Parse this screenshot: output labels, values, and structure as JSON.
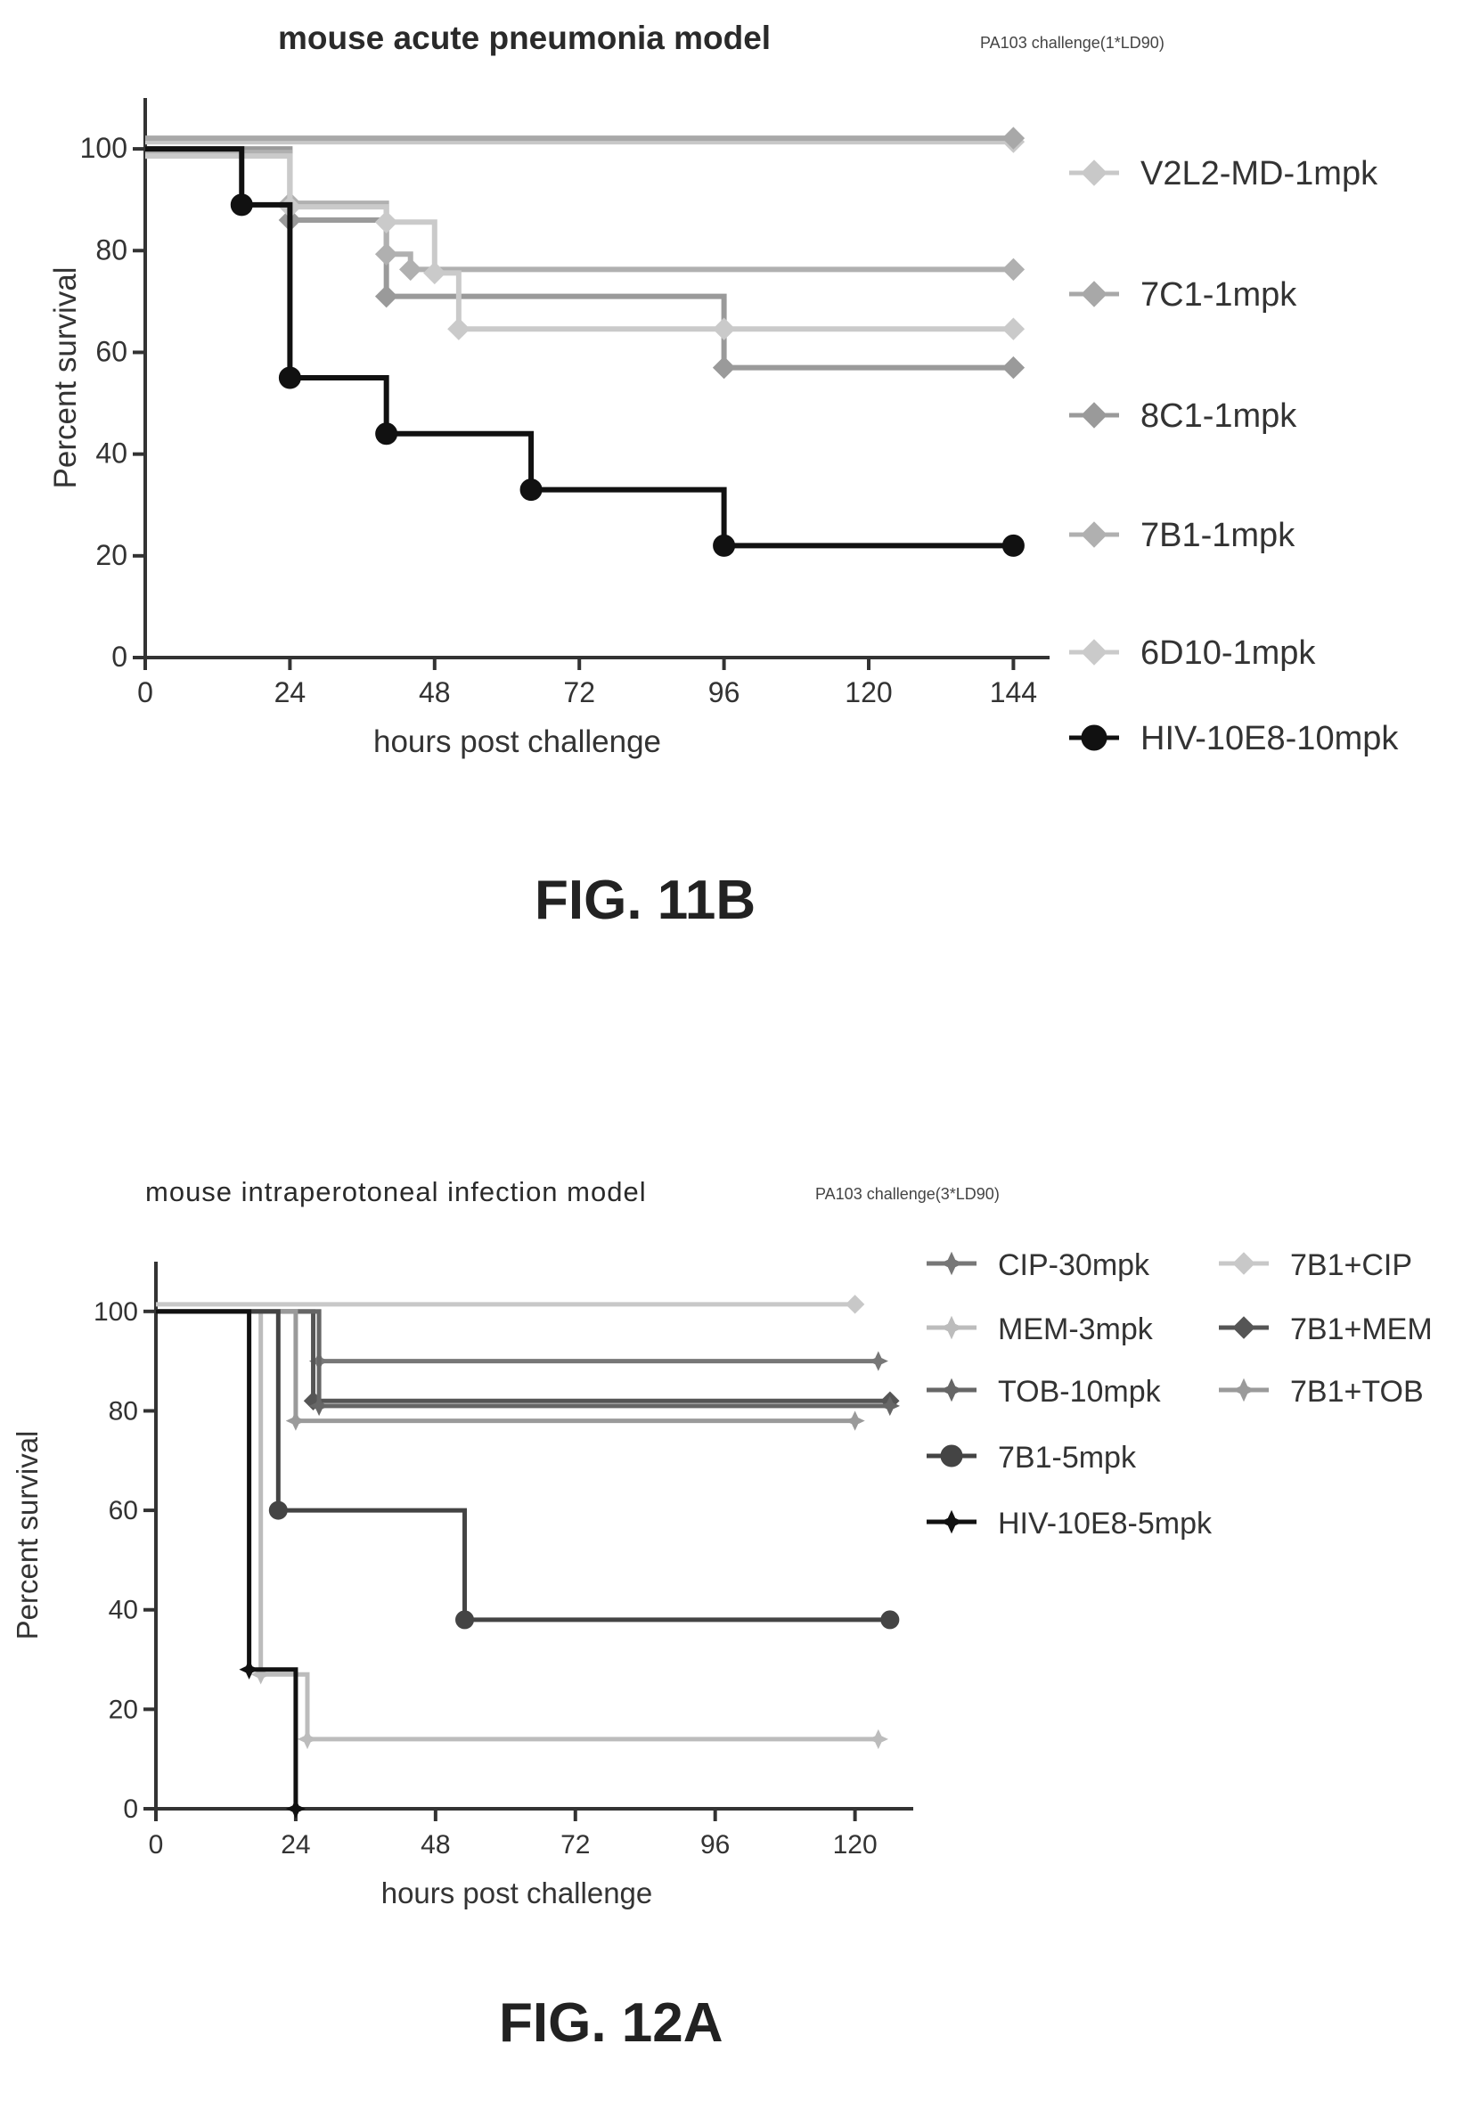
{
  "figures": [
    {
      "label": "FIG. 11B",
      "title": "mouse acute pneumonia model",
      "subtitle": "PA103 challenge(1*LD90)",
      "xlabel": "hours post challenge",
      "ylabel": "Percent survival",
      "xticks": [
        "0",
        "24",
        "48",
        "72",
        "96",
        "120",
        "144"
      ],
      "yticks": [
        "0",
        "20",
        "40",
        "60",
        "80",
        "100"
      ],
      "legend": [
        "V2L2-MD-1mpk",
        "7C1-1mpk",
        "8C1-1mpk",
        "7B1-1mpk",
        "6D10-1mpk",
        "HIV-10E8-10mpk"
      ]
    },
    {
      "label": "FIG. 12A",
      "title": "mouse intraperotoneal infection model",
      "subtitle": "PA103 challenge(3*LD90)",
      "xlabel": "hours post challenge",
      "ylabel": "Percent survival",
      "xticks": [
        "0",
        "24",
        "48",
        "72",
        "96",
        "120"
      ],
      "yticks": [
        "0",
        "20",
        "40",
        "60",
        "80",
        "100"
      ],
      "legend": [
        "CIP-30mpk",
        "7B1+CIP",
        "MEM-3mpk",
        "7B1+MEM",
        "TOB-10mpk",
        "7B1+TOB",
        "7B1-5mpk",
        "HIV-10E8-5mpk"
      ]
    }
  ],
  "chart_data": [
    {
      "type": "line",
      "title": "mouse acute pneumonia model",
      "subtitle": "PA103 challenge(1*LD90)",
      "xlabel": "hours post challenge",
      "ylabel": "Percent survival",
      "xlim": [
        0,
        150
      ],
      "ylim": [
        0,
        110
      ],
      "xticks": [
        0,
        24,
        48,
        72,
        96,
        120,
        144
      ],
      "yticks": [
        0,
        20,
        40,
        60,
        80,
        100
      ],
      "legend_position": "right",
      "step": true,
      "series": [
        {
          "name": "V2L2-MD-1mpk",
          "color": "#c8c8c8",
          "marker": "diamond",
          "x": [
            0,
            144
          ],
          "y": [
            100,
            100
          ]
        },
        {
          "name": "7C1-1mpk",
          "color": "#a8a8a8",
          "marker": "diamond",
          "x": [
            0,
            144
          ],
          "y": [
            100,
            100
          ]
        },
        {
          "name": "8C1-1mpk",
          "color": "#9a9a9a",
          "marker": "diamond",
          "x": [
            0,
            24,
            40,
            96,
            144
          ],
          "y": [
            100,
            86,
            71,
            57,
            57
          ]
        },
        {
          "name": "7B1-1mpk",
          "color": "#b0b0b0",
          "marker": "diamond",
          "x": [
            0,
            24,
            40,
            44,
            144
          ],
          "y": [
            100,
            90,
            80,
            77,
            77
          ]
        },
        {
          "name": "6D10-1mpk",
          "color": "#cacaca",
          "marker": "diamond",
          "x": [
            0,
            24,
            40,
            48,
            52,
            96,
            144
          ],
          "y": [
            100,
            90,
            87,
            77,
            66,
            66,
            66
          ]
        },
        {
          "name": "HIV-10E8-10mpk",
          "color": "#111111",
          "marker": "circle",
          "x": [
            0,
            16,
            24,
            40,
            64,
            96,
            144
          ],
          "y": [
            100,
            89,
            55,
            44,
            33,
            22,
            22
          ]
        }
      ]
    },
    {
      "type": "line",
      "title": "mouse intraperotoneal infection model",
      "subtitle": "PA103 challenge(3*LD90)",
      "xlabel": "hours post challenge",
      "ylabel": "Percent survival",
      "xlim": [
        0,
        130
      ],
      "ylim": [
        0,
        110
      ],
      "xticks": [
        0,
        24,
        48,
        72,
        96,
        120
      ],
      "yticks": [
        0,
        20,
        40,
        60,
        80,
        100
      ],
      "legend_position": "top-right",
      "step": true,
      "series": [
        {
          "name": "CIP-30mpk",
          "color": "#777777",
          "marker": "star",
          "x": [
            0,
            28,
            124
          ],
          "y": [
            100,
            90,
            90
          ]
        },
        {
          "name": "7B1+CIP",
          "color": "#c8c8c8",
          "marker": "diamond",
          "x": [
            0,
            120
          ],
          "y": [
            100,
            100
          ]
        },
        {
          "name": "MEM-3mpk",
          "color": "#bcbcbc",
          "marker": "star",
          "x": [
            0,
            18,
            26,
            124
          ],
          "y": [
            100,
            27,
            14,
            14
          ]
        },
        {
          "name": "7B1+MEM",
          "color": "#555555",
          "marker": "diamond",
          "x": [
            0,
            27,
            126
          ],
          "y": [
            100,
            82,
            82
          ]
        },
        {
          "name": "TOB-10mpk",
          "color": "#666666",
          "marker": "star",
          "x": [
            0,
            28,
            126
          ],
          "y": [
            100,
            81,
            81
          ]
        },
        {
          "name": "7B1+TOB",
          "color": "#9a9a9a",
          "marker": "star",
          "x": [
            0,
            24,
            120
          ],
          "y": [
            100,
            78,
            78
          ]
        },
        {
          "name": "7B1-5mpk",
          "color": "#444444",
          "marker": "circle",
          "x": [
            0,
            21,
            53,
            126
          ],
          "y": [
            100,
            60,
            38,
            38
          ]
        },
        {
          "name": "HIV-10E8-5mpk",
          "color": "#111111",
          "marker": "star",
          "x": [
            0,
            16,
            24
          ],
          "y": [
            100,
            28,
            0
          ]
        }
      ]
    }
  ]
}
